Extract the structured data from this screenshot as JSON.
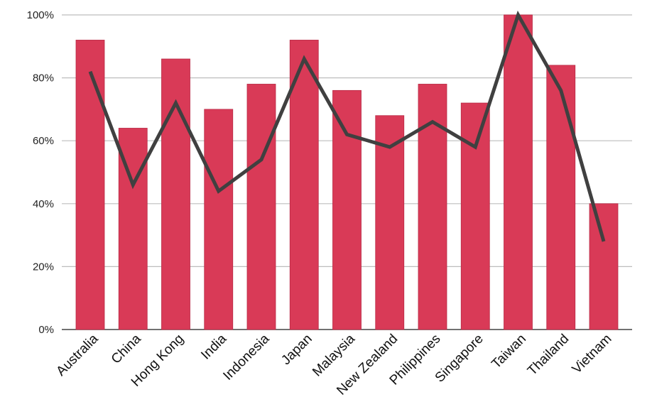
{
  "chart_data": {
    "type": "bar",
    "title": "",
    "xlabel": "",
    "ylabel": "",
    "ylim": [
      0,
      100
    ],
    "y_ticks": [
      0,
      20,
      40,
      60,
      80,
      100
    ],
    "y_tick_labels": [
      "0%",
      "20%",
      "40%",
      "60%",
      "80%",
      "100%"
    ],
    "grid": true,
    "legend": "none",
    "categories": [
      "Australia",
      "China",
      "Hong Kong",
      "India",
      "Indonesia",
      "Japan",
      "Malaysia",
      "New Zealand",
      "Philippines",
      "Singapore",
      "Taiwan",
      "Thailand",
      "Vietnam"
    ],
    "series": [
      {
        "type": "bar",
        "color": "#D93A57",
        "values": [
          92,
          64,
          86,
          70,
          78,
          92,
          76,
          68,
          78,
          72,
          100,
          84,
          40
        ]
      },
      {
        "type": "line",
        "color": "#404040",
        "values": [
          82,
          46,
          72,
          44,
          54,
          86,
          62,
          58,
          66,
          58,
          100,
          76,
          28
        ]
      }
    ]
  }
}
